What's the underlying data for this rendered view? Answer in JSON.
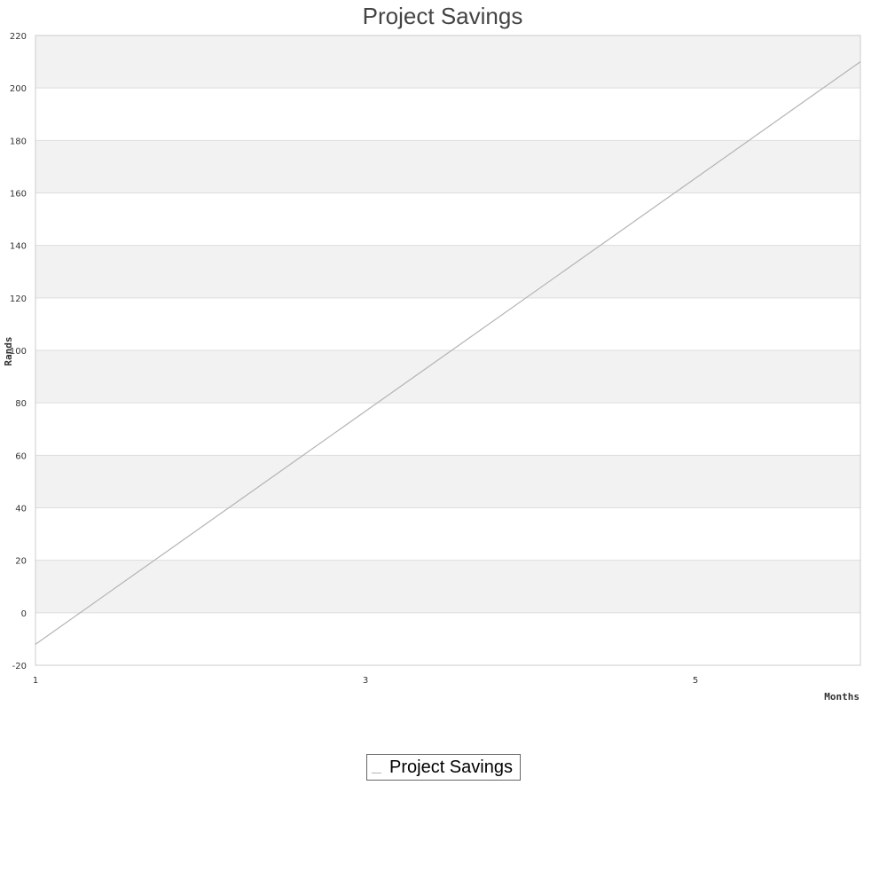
{
  "chart_data": {
    "type": "line",
    "title": "Project Savings",
    "xlabel": "Months",
    "ylabel": "Rands",
    "xlim": [
      1,
      6
    ],
    "ylim": [
      -20,
      220
    ],
    "x_ticks": [
      "1",
      "3",
      "5"
    ],
    "y_ticks": [
      "-20",
      "0",
      "20",
      "40",
      "60",
      "80",
      "100",
      "120",
      "140",
      "160",
      "180",
      "200",
      "220"
    ],
    "grid": true,
    "legend_position": "bottom-center",
    "series": [
      {
        "name": "Project Savings",
        "color": "#b4b4b4",
        "x": [
          1,
          6
        ],
        "y": [
          -12,
          210
        ]
      }
    ],
    "colors": {
      "band_shaded": "#f2f2f2",
      "band_plain": "#ffffff",
      "gridline": "#dddddd",
      "frame": "#cccccc"
    }
  },
  "legend": {
    "label": "Project Savings"
  }
}
